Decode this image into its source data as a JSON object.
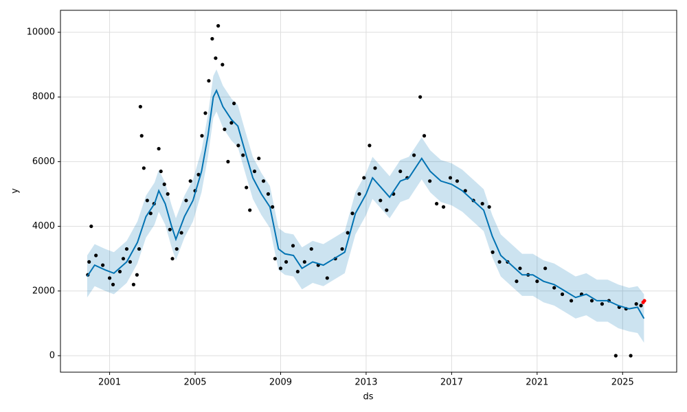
{
  "chart_data": {
    "type": "forecast",
    "xlabel": "ds",
    "ylabel": "y",
    "xlim": [
      1998.7,
      2027.53
    ],
    "ylim": [
      -510,
      10680
    ],
    "xticks": [
      2001,
      2005,
      2009,
      2013,
      2017,
      2021,
      2025
    ],
    "yticks": [
      0,
      2000,
      4000,
      6000,
      8000,
      10000
    ],
    "grid": true,
    "series": [
      {
        "type": "band",
        "color": "#0072b2",
        "x": [
          1999.95,
          2000.3,
          2000.8,
          2001.2,
          2001.8,
          2002.3,
          2002.7,
          2003.1,
          2003.3,
          2003.6,
          2003.9,
          2004.1,
          2004.5,
          2004.9,
          2005.3,
          2005.6,
          2005.85,
          2006.0,
          2006.3,
          2006.7,
          2007.0,
          2007.3,
          2007.7,
          2008.1,
          2008.5,
          2008.9,
          2009.2,
          2009.6,
          2010.0,
          2010.5,
          2011.0,
          2011.5,
          2012.0,
          2012.5,
          2013.0,
          2013.3,
          2013.7,
          2014.1,
          2014.6,
          2015.0,
          2015.6,
          2016.0,
          2016.5,
          2017.0,
          2017.5,
          2018.0,
          2018.5,
          2018.9,
          2019.3,
          2019.8,
          2020.3,
          2020.8,
          2021.3,
          2021.8,
          2022.3,
          2022.8,
          2023.3,
          2023.8,
          2024.3,
          2024.8,
          2025.3,
          2025.7,
          2026.0
        ],
        "lower": [
          1800,
          2150,
          2000,
          1900,
          2250,
          2850,
          3650,
          4050,
          4450,
          4050,
          3350,
          2950,
          3650,
          4150,
          5050,
          6150,
          7350,
          7550,
          7050,
          6650,
          6450,
          5750,
          4850,
          4350,
          3950,
          2650,
          2500,
          2450,
          2050,
          2250,
          2150,
          2350,
          2550,
          3750,
          4350,
          4850,
          4550,
          4250,
          4750,
          4850,
          5450,
          5050,
          4750,
          4650,
          4450,
          4150,
          3850,
          3050,
          2450,
          2150,
          1850,
          1850,
          1650,
          1550,
          1350,
          1150,
          1250,
          1050,
          1050,
          850,
          750,
          700,
          400
        ],
        "upper": [
          3100,
          3450,
          3300,
          3200,
          3550,
          4150,
          4950,
          5350,
          5750,
          5350,
          4650,
          4250,
          4950,
          5450,
          6350,
          7450,
          8650,
          8850,
          8350,
          7950,
          7750,
          7050,
          6150,
          5650,
          5250,
          3950,
          3800,
          3750,
          3350,
          3550,
          3450,
          3650,
          3850,
          5050,
          5650,
          6150,
          5850,
          5550,
          6050,
          6150,
          6750,
          6350,
          6050,
          5950,
          5750,
          5450,
          5150,
          4350,
          3750,
          3450,
          3150,
          3150,
          2950,
          2850,
          2650,
          2450,
          2550,
          2350,
          2350,
          2200,
          2100,
          2150,
          1900
        ]
      },
      {
        "type": "scatter",
        "color": "#000000",
        "x": [
          1999.98,
          2000.04,
          2000.14,
          2000.36,
          2000.68,
          2001.0,
          2001.16,
          2001.48,
          2001.64,
          2001.8,
          2001.96,
          2002.12,
          2002.28,
          2002.38,
          2002.44,
          2002.5,
          2002.6,
          2002.76,
          2002.92,
          2003.08,
          2003.3,
          2003.4,
          2003.56,
          2003.72,
          2003.82,
          2003.94,
          2004.14,
          2004.36,
          2004.58,
          2004.78,
          2005.0,
          2005.16,
          2005.32,
          2005.48,
          2005.64,
          2005.8,
          2005.96,
          2006.08,
          2006.28,
          2006.38,
          2006.54,
          2006.7,
          2006.82,
          2007.02,
          2007.24,
          2007.4,
          2007.56,
          2007.78,
          2007.98,
          2008.2,
          2008.42,
          2008.62,
          2008.74,
          2009.0,
          2009.26,
          2009.58,
          2009.8,
          2010.12,
          2010.44,
          2010.76,
          2011.18,
          2011.56,
          2011.88,
          2012.14,
          2012.36,
          2012.68,
          2012.9,
          2013.16,
          2013.42,
          2013.67,
          2013.96,
          2014.28,
          2014.6,
          2014.92,
          2015.24,
          2015.53,
          2015.72,
          2015.98,
          2016.3,
          2016.62,
          2016.94,
          2017.26,
          2017.64,
          2018.02,
          2018.44,
          2018.76,
          2018.92,
          2019.24,
          2019.62,
          2020.04,
          2020.2,
          2020.58,
          2021.0,
          2021.38,
          2021.8,
          2022.18,
          2022.6,
          2023.08,
          2023.56,
          2024.04,
          2024.36,
          2024.68,
          2024.84,
          2025.16,
          2025.38,
          2025.64,
          2025.86
        ],
        "values": [
          2500,
          2900,
          4000,
          3100,
          2800,
          2400,
          2200,
          2600,
          3000,
          3300,
          2900,
          2200,
          2500,
          3300,
          7700,
          6800,
          5800,
          4800,
          4400,
          4700,
          6400,
          5700,
          5300,
          5000,
          3900,
          3000,
          3300,
          3800,
          4800,
          5400,
          5100,
          5600,
          6800,
          7500,
          8500,
          9800,
          9200,
          10200,
          9000,
          7000,
          6000,
          7200,
          7800,
          6500,
          6200,
          5200,
          4500,
          5700,
          6100,
          5400,
          5000,
          4600,
          3000,
          2700,
          2900,
          3400,
          2600,
          2900,
          3300,
          2800,
          2400,
          3000,
          3300,
          3800,
          4400,
          5000,
          5500,
          6500,
          5800,
          4800,
          4500,
          5000,
          5700,
          5500,
          6200,
          8000,
          6800,
          5400,
          4700,
          4600,
          5500,
          5400,
          5100,
          4800,
          4700,
          4600,
          3200,
          2900,
          2900,
          2300,
          2700,
          2500,
          2300,
          2700,
          2100,
          1900,
          1700,
          1900,
          1700,
          1600,
          1700,
          0,
          1500,
          1450,
          0,
          1600,
          1550
        ]
      },
      {
        "type": "line",
        "color": "#0072b2",
        "x": [
          1999.95,
          2000.3,
          2000.8,
          2001.2,
          2001.8,
          2002.3,
          2002.7,
          2003.1,
          2003.3,
          2003.6,
          2003.9,
          2004.1,
          2004.5,
          2004.9,
          2005.3,
          2005.6,
          2005.85,
          2006.0,
          2006.3,
          2006.7,
          2007.0,
          2007.3,
          2007.7,
          2008.1,
          2008.5,
          2008.9,
          2009.2,
          2009.6,
          2010.0,
          2010.5,
          2011.0,
          2011.5,
          2012.0,
          2012.5,
          2013.0,
          2013.3,
          2013.7,
          2014.1,
          2014.6,
          2015.0,
          2015.6,
          2016.0,
          2016.5,
          2017.0,
          2017.5,
          2018.0,
          2018.5,
          2018.9,
          2019.3,
          2019.8,
          2020.3,
          2020.8,
          2021.3,
          2021.8,
          2022.3,
          2022.8,
          2023.3,
          2023.8,
          2024.3,
          2024.8,
          2025.3,
          2025.7,
          2026.0
        ],
        "values": [
          2450,
          2800,
          2650,
          2550,
          2900,
          3500,
          4300,
          4700,
          5100,
          4700,
          4000,
          3600,
          4300,
          4800,
          5700,
          6800,
          8000,
          8200,
          7700,
          7300,
          7100,
          6400,
          5500,
          5000,
          4600,
          3300,
          3150,
          3100,
          2700,
          2900,
          2800,
          3000,
          3200,
          4400,
          5000,
          5500,
          5200,
          4900,
          5400,
          5500,
          6100,
          5700,
          5400,
          5300,
          5100,
          4800,
          4500,
          3700,
          3100,
          2800,
          2500,
          2500,
          2300,
          2200,
          2000,
          1800,
          1900,
          1700,
          1700,
          1550,
          1450,
          1500,
          1150
        ]
      },
      {
        "type": "scatter",
        "color": "#ff0000",
        "x": [
          2025.96,
          2026.02
        ],
        "values": [
          1650,
          1700
        ]
      }
    ]
  }
}
